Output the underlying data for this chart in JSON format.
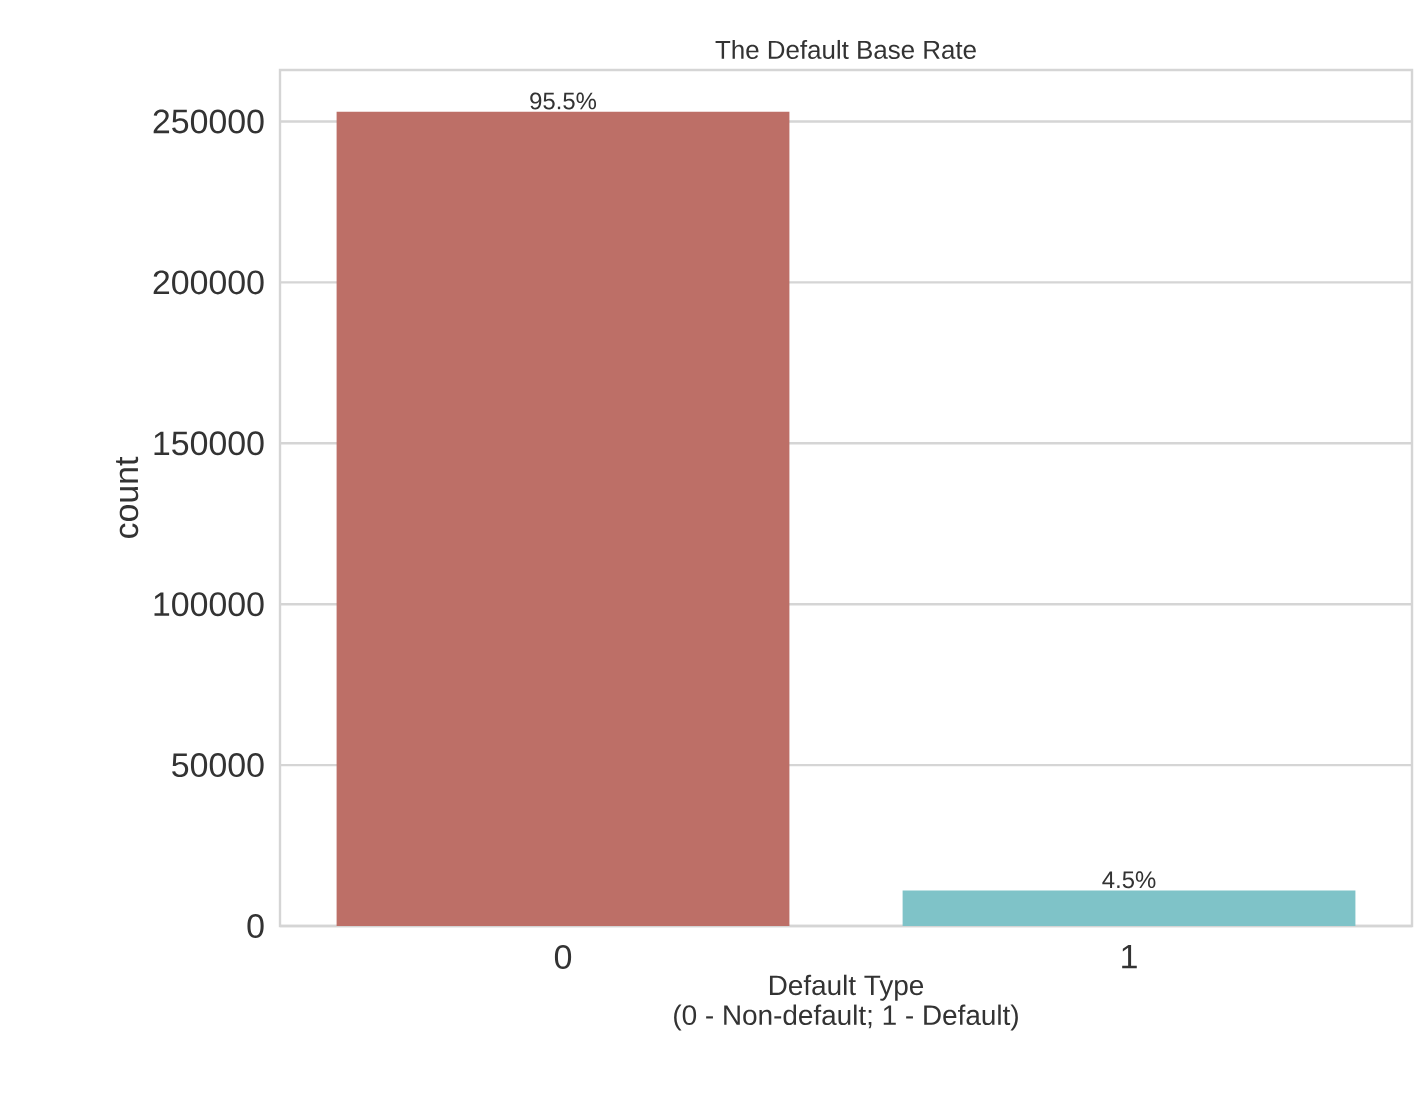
{
  "chart_data": {
    "type": "bar",
    "title": "The Default Base Rate",
    "xlabel": "Default Type\n(0 - Non-default; 1 - Default)",
    "ylabel": "count",
    "categories": [
      "0",
      "1"
    ],
    "values": [
      253000,
      11000
    ],
    "colors": [
      "#bd6f67",
      "#7fc3c8"
    ],
    "annotations": [
      {
        "text": "95.5%",
        "x": "0",
        "y": 253000
      },
      {
        "text": "4.5%",
        "x": "1",
        "y": 11000
      }
    ],
    "ylim": [
      0,
      266000
    ],
    "yticks": [
      0,
      50000,
      100000,
      150000,
      200000,
      250000
    ],
    "grid": "y"
  }
}
